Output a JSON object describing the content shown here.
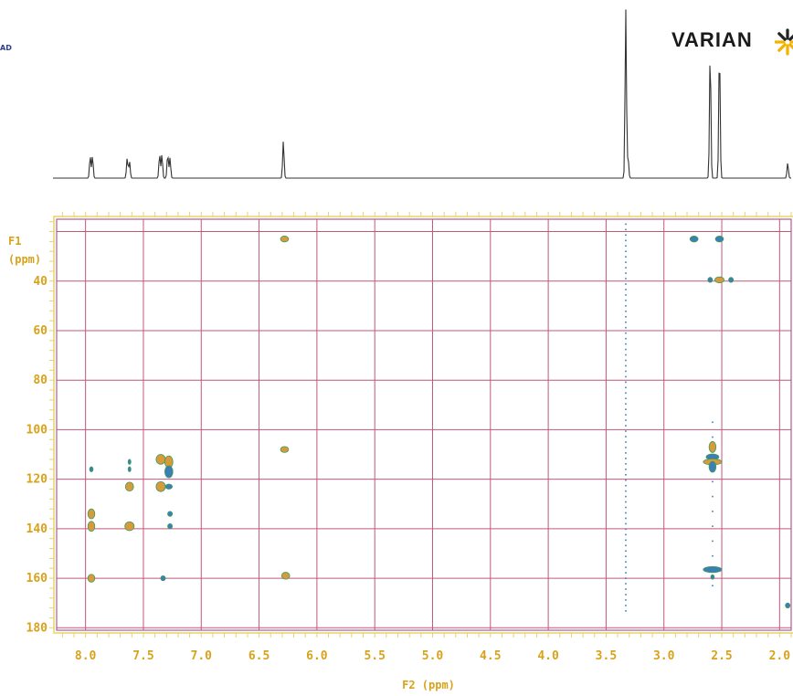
{
  "page": {
    "corner_text": "AD",
    "brand_name": "VARIAN",
    "colors": {
      "axis_yellow": "#e8d36a",
      "tick_label": "#d9a21b",
      "grid_red": "#c2577a",
      "frame_purple": "#b45c8c",
      "spectrum_line": "#333333",
      "peak_fill_orange": "#d89a3a",
      "peak_fill_blue": "#3b7fb5",
      "peak_outline_green": "#3c9c5c",
      "logo_yellow": "#f2b300",
      "logo_dark": "#222222"
    },
    "icons": [
      "varian-logo-icon"
    ]
  },
  "chart_data": {
    "type": "heatmap",
    "experiment": "2D HSQC-style correlation spectrum",
    "x_axis": {
      "label": "F2 (ppm)",
      "range": [
        8.25,
        1.9
      ],
      "reversed": true,
      "ticks": [
        "8.0",
        "7.5",
        "7.0",
        "6.5",
        "6.0",
        "5.5",
        "5.0",
        "4.5",
        "4.0",
        "3.5",
        "3.0",
        "2.5",
        "2.0"
      ]
    },
    "y_axis": {
      "label_line1": "F1",
      "label_line2": "(ppm)",
      "range": [
        15,
        181
      ],
      "reversed": true,
      "ticks": [
        "40",
        "60",
        "80",
        "100",
        "120",
        "140",
        "160",
        "180"
      ]
    },
    "grid": true,
    "projection_1d": {
      "peaks": [
        {
          "ppm": 7.96,
          "height": 0.13
        },
        {
          "ppm": 7.94,
          "height": 0.13
        },
        {
          "ppm": 7.64,
          "height": 0.12
        },
        {
          "ppm": 7.62,
          "height": 0.1
        },
        {
          "ppm": 7.36,
          "height": 0.14
        },
        {
          "ppm": 7.34,
          "height": 0.14
        },
        {
          "ppm": 7.29,
          "height": 0.14
        },
        {
          "ppm": 7.27,
          "height": 0.12
        },
        {
          "ppm": 6.29,
          "height": 0.22
        },
        {
          "ppm": 3.33,
          "height": 1.0
        },
        {
          "ppm": 3.31,
          "height": 0.12
        },
        {
          "ppm": 2.6,
          "height": 0.75
        },
        {
          "ppm": 2.52,
          "height": 0.77
        },
        {
          "ppm": 1.93,
          "height": 0.09
        }
      ]
    },
    "cross_peaks": [
      {
        "f2": 7.95,
        "f1": 134,
        "w": 0.03,
        "h": 2.0,
        "color": "orange"
      },
      {
        "f2": 7.95,
        "f1": 139,
        "w": 0.03,
        "h": 2.0,
        "color": "orange"
      },
      {
        "f2": 7.95,
        "f1": 160,
        "w": 0.03,
        "h": 1.6,
        "color": "orange"
      },
      {
        "f2": 7.95,
        "f1": 116,
        "w": 0.015,
        "h": 1.0,
        "color": "blue"
      },
      {
        "f2": 7.62,
        "f1": 123,
        "w": 0.035,
        "h": 1.8,
        "color": "orange"
      },
      {
        "f2": 7.62,
        "f1": 139,
        "w": 0.04,
        "h": 1.8,
        "color": "orange"
      },
      {
        "f2": 7.62,
        "f1": 113,
        "w": 0.012,
        "h": 1.0,
        "color": "blue"
      },
      {
        "f2": 7.62,
        "f1": 116,
        "w": 0.012,
        "h": 1.0,
        "color": "blue"
      },
      {
        "f2": 7.35,
        "f1": 112,
        "w": 0.04,
        "h": 2.0,
        "color": "orange"
      },
      {
        "f2": 7.35,
        "f1": 123,
        "w": 0.04,
        "h": 2.0,
        "color": "orange"
      },
      {
        "f2": 7.33,
        "f1": 160,
        "w": 0.02,
        "h": 1.0,
        "color": "blue"
      },
      {
        "f2": 7.28,
        "f1": 113,
        "w": 0.035,
        "h": 2.4,
        "color": "orange"
      },
      {
        "f2": 7.28,
        "f1": 117,
        "w": 0.035,
        "h": 2.4,
        "color": "blue"
      },
      {
        "f2": 7.28,
        "f1": 123,
        "w": 0.03,
        "h": 1.0,
        "color": "blue"
      },
      {
        "f2": 7.27,
        "f1": 134,
        "w": 0.02,
        "h": 1.0,
        "color": "blue"
      },
      {
        "f2": 7.27,
        "f1": 139,
        "w": 0.02,
        "h": 1.0,
        "color": "blue"
      },
      {
        "f2": 6.28,
        "f1": 23,
        "w": 0.035,
        "h": 1.2,
        "color": "orange"
      },
      {
        "f2": 6.28,
        "f1": 108,
        "w": 0.035,
        "h": 1.2,
        "color": "orange"
      },
      {
        "f2": 6.27,
        "f1": 159,
        "w": 0.035,
        "h": 1.4,
        "color": "orange"
      },
      {
        "f2": 2.74,
        "f1": 23,
        "w": 0.035,
        "h": 1.2,
        "color": "blue"
      },
      {
        "f2": 2.52,
        "f1": 23,
        "w": 0.035,
        "h": 1.2,
        "color": "blue"
      },
      {
        "f2": 2.52,
        "f1": 39.5,
        "w": 0.04,
        "h": 1.2,
        "color": "orange"
      },
      {
        "f2": 2.6,
        "f1": 39.5,
        "w": 0.02,
        "h": 1.0,
        "color": "blue"
      },
      {
        "f2": 2.42,
        "f1": 39.5,
        "w": 0.02,
        "h": 1.0,
        "color": "blue"
      },
      {
        "f2": 2.58,
        "f1": 107,
        "w": 0.03,
        "h": 2.2,
        "color": "orange"
      },
      {
        "f2": 2.58,
        "f1": 111,
        "w": 0.055,
        "h": 1.2,
        "color": "blue"
      },
      {
        "f2": 2.58,
        "f1": 113,
        "w": 0.08,
        "h": 1.2,
        "color": "orange"
      },
      {
        "f2": 2.58,
        "f1": 115,
        "w": 0.03,
        "h": 2.2,
        "color": "blue"
      },
      {
        "f2": 2.58,
        "f1": 156.5,
        "w": 0.08,
        "h": 1.2,
        "color": "blue"
      },
      {
        "f2": 2.58,
        "f1": 159.5,
        "w": 0.015,
        "h": 0.9,
        "color": "blue"
      },
      {
        "f2": 1.93,
        "f1": 171,
        "w": 0.02,
        "h": 1.0,
        "color": "blue"
      }
    ],
    "noise_streaks": [
      {
        "f2": 3.33,
        "f1_from": 17,
        "f1_to": 175,
        "step": 2.2,
        "color": "blue"
      },
      {
        "f2": 2.58,
        "f1_from": 97,
        "f1_to": 166,
        "step": 6,
        "color": "blue"
      }
    ]
  }
}
